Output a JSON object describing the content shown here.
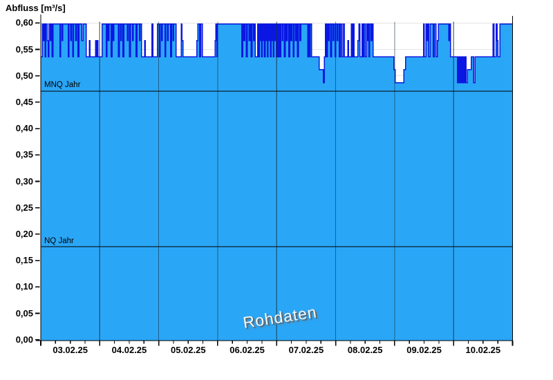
{
  "header": {
    "title": "Abfluss [m³/s]"
  },
  "watermark": {
    "text": "Rohdaten"
  },
  "colors": {
    "area_fill": "#2aa6f6",
    "area_line": "#0a17e2",
    "grid_horizontal": "#e4e4e4",
    "grid_vertical": "rgba(22,54,68,0.62)",
    "axis": "#000000",
    "reference_line": "#000000",
    "text": "#000000"
  },
  "chart_data": {
    "type": "area",
    "title": "Abfluss [m³/s]",
    "ylabel": "Abfluss [m³/s]",
    "xlabel": "",
    "x_tick_labels": [
      "03.02.25",
      "04.02.25",
      "05.02.25",
      "06.02.25",
      "07.02.25",
      "08.02.25",
      "09.02.25",
      "10.02.25"
    ],
    "x_range_hours": 192,
    "x_major_tick_hours": 24,
    "x_minor_tick_hours": 6,
    "ylim": [
      0,
      0.611
    ],
    "y_ticks": [
      0,
      0.05,
      0.1,
      0.15,
      0.2,
      0.25,
      0.3,
      0.35,
      0.4,
      0.45,
      0.5,
      0.55,
      0.6
    ],
    "y_tick_labels": [
      "0,00",
      "0,05",
      "0,10",
      "0,15",
      "0,20",
      "0,25",
      "0,30",
      "0,35",
      "0,40",
      "0,45",
      "0,50",
      "0,55",
      "0,60"
    ],
    "grid": {
      "horizontal": true,
      "vertical_daily": true
    },
    "legend": "none",
    "reference_lines": [
      {
        "label": "MNQ Jahr",
        "value": 0.471
      },
      {
        "label": "NQ Jahr",
        "value": 0.176
      }
    ],
    "series": [
      {
        "name": "Rohdaten",
        "unit": "m³/s",
        "quantized_levels_m3s": [
          0.487,
          0.512,
          0.536,
          0.567,
          0.598
        ],
        "runs_hours_level": [
          [
            0.6,
            0.536
          ],
          [
            0.5,
            0.598
          ],
          [
            0.3,
            0.567
          ],
          [
            0.4,
            0.598
          ],
          [
            0.3,
            0.536
          ],
          [
            0.5,
            0.598
          ],
          [
            0.4,
            0.567
          ],
          [
            0.3,
            0.536
          ],
          [
            0.6,
            0.598
          ],
          [
            0.3,
            0.567
          ],
          [
            0.4,
            0.598
          ],
          [
            0.4,
            0.536
          ],
          [
            2.8,
            0.598
          ],
          [
            0.3,
            0.536
          ],
          [
            0.5,
            0.598
          ],
          [
            0.4,
            0.567
          ],
          [
            2.2,
            0.598
          ],
          [
            0.3,
            0.536
          ],
          [
            0.6,
            0.598
          ],
          [
            0.4,
            0.567
          ],
          [
            0.5,
            0.598
          ],
          [
            0.3,
            0.536
          ],
          [
            0.8,
            0.598
          ],
          [
            0.4,
            0.567
          ],
          [
            0.6,
            0.598
          ],
          [
            0.4,
            0.536
          ],
          [
            1.2,
            0.598
          ],
          [
            0.5,
            0.567
          ],
          [
            1.3,
            0.598
          ],
          [
            1.2,
            0.536
          ],
          [
            0.4,
            0.567
          ],
          [
            2.2,
            0.536
          ],
          [
            0.3,
            0.567
          ],
          [
            0.4,
            0.536
          ],
          [
            0.3,
            0.567
          ],
          [
            1.7,
            0.536
          ],
          [
            1.6,
            0.598
          ],
          [
            0.3,
            0.536
          ],
          [
            0.5,
            0.598
          ],
          [
            0.4,
            0.567
          ],
          [
            0.8,
            0.598
          ],
          [
            0.5,
            0.536
          ],
          [
            0.4,
            0.598
          ],
          [
            0.3,
            0.567
          ],
          [
            1.8,
            0.598
          ],
          [
            0.4,
            0.536
          ],
          [
            0.6,
            0.598
          ],
          [
            0.3,
            0.567
          ],
          [
            0.5,
            0.598
          ],
          [
            0.4,
            0.536
          ],
          [
            1.4,
            0.598
          ],
          [
            0.3,
            0.567
          ],
          [
            0.6,
            0.598
          ],
          [
            0.4,
            0.536
          ],
          [
            0.8,
            0.598
          ],
          [
            0.3,
            0.567
          ],
          [
            1.2,
            0.598
          ],
          [
            0.4,
            0.536
          ],
          [
            0.9,
            0.598
          ],
          [
            0.3,
            0.567
          ],
          [
            0.6,
            0.598
          ],
          [
            1.2,
            0.536
          ],
          [
            0.4,
            0.567
          ],
          [
            2.6,
            0.536
          ],
          [
            0.4,
            0.598
          ],
          [
            1.9,
            0.536
          ],
          [
            0.8,
            0.598
          ],
          [
            0.3,
            0.536
          ],
          [
            0.6,
            0.598
          ],
          [
            0.3,
            0.567
          ],
          [
            1.0,
            0.598
          ],
          [
            0.4,
            0.536
          ],
          [
            0.7,
            0.598
          ],
          [
            0.3,
            0.567
          ],
          [
            0.9,
            0.598
          ],
          [
            0.4,
            0.536
          ],
          [
            0.6,
            0.598
          ],
          [
            0.3,
            0.567
          ],
          [
            0.9,
            0.598
          ],
          [
            2.2,
            0.536
          ],
          [
            0.3,
            0.598
          ],
          [
            0.4,
            0.567
          ],
          [
            5.6,
            0.536
          ],
          [
            0.4,
            0.567
          ],
          [
            0.8,
            0.598
          ],
          [
            0.3,
            0.536
          ],
          [
            0.8,
            0.598
          ],
          [
            5.1,
            0.536
          ],
          [
            0.4,
            0.567
          ],
          [
            0.3,
            0.598
          ],
          [
            0.3,
            0.536
          ],
          [
            9.9,
            0.598
          ],
          [
            0.4,
            0.536
          ],
          [
            0.5,
            0.598
          ],
          [
            0.3,
            0.567
          ],
          [
            0.6,
            0.598
          ],
          [
            0.4,
            0.536
          ],
          [
            0.8,
            0.598
          ],
          [
            0.3,
            0.567
          ],
          [
            0.5,
            0.598
          ],
          [
            0.4,
            0.536
          ],
          [
            0.6,
            0.598
          ],
          [
            0.3,
            0.567
          ],
          [
            0.4,
            0.598
          ],
          [
            1.0,
            0.536
          ],
          [
            0.3,
            0.598
          ],
          [
            0.3,
            0.536
          ],
          [
            0.3,
            0.598
          ],
          [
            0.3,
            0.567
          ],
          [
            0.3,
            0.598
          ],
          [
            0.3,
            0.536
          ],
          [
            0.3,
            0.598
          ],
          [
            0.3,
            0.567
          ],
          [
            0.3,
            0.598
          ],
          [
            0.3,
            0.536
          ],
          [
            0.3,
            0.598
          ],
          [
            0.3,
            0.567
          ],
          [
            0.3,
            0.598
          ],
          [
            0.3,
            0.536
          ],
          [
            0.3,
            0.598
          ],
          [
            0.3,
            0.567
          ],
          [
            0.3,
            0.598
          ],
          [
            0.3,
            0.536
          ],
          [
            0.3,
            0.598
          ],
          [
            0.3,
            0.567
          ],
          [
            0.3,
            0.598
          ],
          [
            0.3,
            0.536
          ],
          [
            0.3,
            0.598
          ],
          [
            0.3,
            0.567
          ],
          [
            0.3,
            0.598
          ],
          [
            0.3,
            0.536
          ],
          [
            0.3,
            0.598
          ],
          [
            0.4,
            0.536
          ],
          [
            0.5,
            0.598
          ],
          [
            0.4,
            0.536
          ],
          [
            0.5,
            0.598
          ],
          [
            0.4,
            0.567
          ],
          [
            0.5,
            0.598
          ],
          [
            0.4,
            0.536
          ],
          [
            0.5,
            0.598
          ],
          [
            0.4,
            0.567
          ],
          [
            0.5,
            0.598
          ],
          [
            0.4,
            0.536
          ],
          [
            0.5,
            0.598
          ],
          [
            0.4,
            0.567
          ],
          [
            0.5,
            0.598
          ],
          [
            0.4,
            0.536
          ],
          [
            0.5,
            0.598
          ],
          [
            0.4,
            0.567
          ],
          [
            0.5,
            0.598
          ],
          [
            0.4,
            0.536
          ],
          [
            0.5,
            0.598
          ],
          [
            0.4,
            0.567
          ],
          [
            0.5,
            0.598
          ],
          [
            2.3,
            0.598
          ],
          [
            0.4,
            0.536
          ],
          [
            0.4,
            0.598
          ],
          [
            0.3,
            0.536
          ],
          [
            0.5,
            0.598
          ],
          [
            0.3,
            0.536
          ],
          [
            2.8,
            0.536
          ],
          [
            1.7,
            0.512
          ],
          [
            0.4,
            0.487
          ],
          [
            0.5,
            0.536
          ],
          [
            0.4,
            0.598
          ],
          [
            0.4,
            0.536
          ],
          [
            0.3,
            0.598
          ],
          [
            0.4,
            0.567
          ],
          [
            0.5,
            0.598
          ],
          [
            0.4,
            0.536
          ],
          [
            0.6,
            0.598
          ],
          [
            0.3,
            0.567
          ],
          [
            0.5,
            0.598
          ],
          [
            0.4,
            0.536
          ],
          [
            0.5,
            0.598
          ],
          [
            0.3,
            0.567
          ],
          [
            0.6,
            0.598
          ],
          [
            0.4,
            0.536
          ],
          [
            0.6,
            0.598
          ],
          [
            0.5,
            0.536
          ],
          [
            0.5,
            0.598
          ],
          [
            1.5,
            0.536
          ],
          [
            0.3,
            0.567
          ],
          [
            1.1,
            0.536
          ],
          [
            0.4,
            0.598
          ],
          [
            0.3,
            0.536
          ],
          [
            0.4,
            0.598
          ],
          [
            1.6,
            0.536
          ],
          [
            0.4,
            0.567
          ],
          [
            0.4,
            0.598
          ],
          [
            0.8,
            0.536
          ],
          [
            0.5,
            0.598
          ],
          [
            0.3,
            0.536
          ],
          [
            0.5,
            0.598
          ],
          [
            0.5,
            0.536
          ],
          [
            0.4,
            0.598
          ],
          [
            0.3,
            0.567
          ],
          [
            0.4,
            0.598
          ],
          [
            0.3,
            0.536
          ],
          [
            0.5,
            0.598
          ],
          [
            0.4,
            0.567
          ],
          [
            0.5,
            0.598
          ],
          [
            1.4,
            0.536
          ],
          [
            7.0,
            0.536
          ],
          [
            0.5,
            0.512
          ],
          [
            3.6,
            0.487
          ],
          [
            0.7,
            0.512
          ],
          [
            7.3,
            0.536
          ],
          [
            0.3,
            0.598
          ],
          [
            0.7,
            0.536
          ],
          [
            0.4,
            0.598
          ],
          [
            0.3,
            0.567
          ],
          [
            0.4,
            0.598
          ],
          [
            0.6,
            0.536
          ],
          [
            1.2,
            0.598
          ],
          [
            0.4,
            0.536
          ],
          [
            0.8,
            0.598
          ],
          [
            0.5,
            0.536
          ],
          [
            0.4,
            0.567
          ],
          [
            4.2,
            0.598
          ],
          [
            0.3,
            0.567
          ],
          [
            0.5,
            0.598
          ],
          [
            2.8,
            0.536
          ],
          [
            0.4,
            0.487
          ],
          [
            0.3,
            0.536
          ],
          [
            0.4,
            0.487
          ],
          [
            0.3,
            0.536
          ],
          [
            0.4,
            0.487
          ],
          [
            0.3,
            0.536
          ],
          [
            0.4,
            0.487
          ],
          [
            0.3,
            0.536
          ],
          [
            0.4,
            0.487
          ],
          [
            0.3,
            0.536
          ],
          [
            0.5,
            0.487
          ],
          [
            1.6,
            0.512
          ],
          [
            1.0,
            0.536
          ],
          [
            0.6,
            0.487
          ],
          [
            1.5,
            0.536
          ],
          [
            5.7,
            0.536
          ],
          [
            0.5,
            0.598
          ],
          [
            0.8,
            0.536
          ],
          [
            0.4,
            0.598
          ],
          [
            0.3,
            0.567
          ],
          [
            0.8,
            0.536
          ],
          [
            5.2,
            0.598
          ]
        ]
      }
    ]
  }
}
